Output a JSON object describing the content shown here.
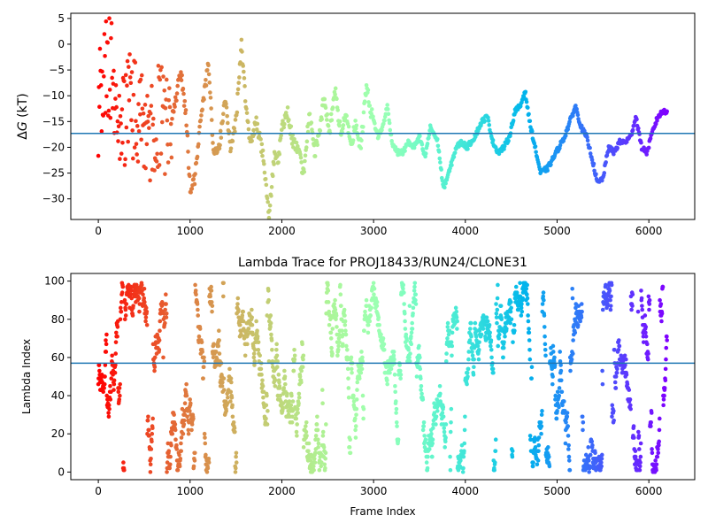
{
  "chart_data": [
    {
      "type": "scatter",
      "title": "",
      "xlabel": "",
      "ylabel": "ΔG (kT)",
      "ylabel_delta": "Δ",
      "ylabel_var": "G",
      "ylabel_unit": " (kT)",
      "xlim": [
        -300,
        6500
      ],
      "ylim": [
        -34,
        6
      ],
      "xticks": [
        0,
        1000,
        2000,
        3000,
        4000,
        5000,
        6000
      ],
      "xtick_labels": [
        "0",
        "1000",
        "2000",
        "3000",
        "4000",
        "5000",
        "6000"
      ],
      "yticks": [
        5,
        0,
        -5,
        -10,
        -15,
        -20,
        -25,
        -30
      ],
      "ytick_labels": [
        "5",
        "0",
        "−5",
        "−10",
        "−15",
        "−20",
        "−25",
        "−30"
      ],
      "hline": -17.3,
      "hline_color": "#1f77b4",
      "colormap": "rainbow (red at frame 0 → violet at frame 6200)",
      "trace_anchors": [
        [
          0,
          -12
        ],
        [
          60,
          -6
        ],
        [
          120,
          -3
        ],
        [
          180,
          -12
        ],
        [
          240,
          -18
        ],
        [
          300,
          -14
        ],
        [
          360,
          -10
        ],
        [
          420,
          -16
        ],
        [
          480,
          -13
        ],
        [
          540,
          -18
        ],
        [
          600,
          -15
        ],
        [
          660,
          -13
        ],
        [
          720,
          -17
        ],
        [
          780,
          -15
        ],
        [
          840,
          -11
        ],
        [
          900,
          -5
        ],
        [
          960,
          -15
        ],
        [
          1000,
          -28
        ],
        [
          1050,
          -26
        ],
        [
          1100,
          -17
        ],
        [
          1150,
          -10
        ],
        [
          1200,
          -4
        ],
        [
          1260,
          -22
        ],
        [
          1320,
          -20
        ],
        [
          1380,
          -10
        ],
        [
          1440,
          -20
        ],
        [
          1500,
          -15
        ],
        [
          1560,
          0
        ],
        [
          1600,
          -10
        ],
        [
          1650,
          -19
        ],
        [
          1720,
          -15
        ],
        [
          1800,
          -22
        ],
        [
          1860,
          -33
        ],
        [
          1920,
          -21
        ],
        [
          1960,
          -23
        ],
        [
          2000,
          -16
        ],
        [
          2060,
          -13
        ],
        [
          2120,
          -19
        ],
        [
          2180,
          -21
        ],
        [
          2240,
          -25
        ],
        [
          2300,
          -13
        ],
        [
          2360,
          -21
        ],
        [
          2420,
          -16
        ],
        [
          2460,
          -10
        ],
        [
          2520,
          -17
        ],
        [
          2580,
          -9
        ],
        [
          2640,
          -17
        ],
        [
          2700,
          -14
        ],
        [
          2760,
          -20
        ],
        [
          2800,
          -15
        ],
        [
          2860,
          -20
        ],
        [
          2920,
          -8
        ],
        [
          2970,
          -13
        ],
        [
          3050,
          -18
        ],
        [
          3100,
          -16
        ],
        [
          3150,
          -12
        ],
        [
          3200,
          -19
        ],
        [
          3260,
          -21
        ],
        [
          3320,
          -21
        ],
        [
          3380,
          -19
        ],
        [
          3440,
          -20
        ],
        [
          3500,
          -18
        ],
        [
          3560,
          -22
        ],
        [
          3620,
          -16
        ],
        [
          3700,
          -19
        ],
        [
          3760,
          -28
        ],
        [
          3820,
          -25
        ],
        [
          3900,
          -20
        ],
        [
          3960,
          -19
        ],
        [
          4020,
          -20
        ],
        [
          4100,
          -18
        ],
        [
          4180,
          -15
        ],
        [
          4240,
          -14
        ],
        [
          4300,
          -19
        ],
        [
          4360,
          -21
        ],
        [
          4420,
          -20
        ],
        [
          4480,
          -18
        ],
        [
          4540,
          -13
        ],
        [
          4600,
          -12
        ],
        [
          4650,
          -9
        ],
        [
          4700,
          -15
        ],
        [
          4760,
          -20
        ],
        [
          4820,
          -25
        ],
        [
          4900,
          -24
        ],
        [
          4960,
          -22
        ],
        [
          5020,
          -20
        ],
        [
          5080,
          -18
        ],
        [
          5140,
          -15
        ],
        [
          5200,
          -12
        ],
        [
          5260,
          -16
        ],
        [
          5320,
          -18
        ],
        [
          5380,
          -22
        ],
        [
          5440,
          -27
        ],
        [
          5500,
          -26
        ],
        [
          5560,
          -20
        ],
        [
          5620,
          -21
        ],
        [
          5680,
          -19
        ],
        [
          5740,
          -19
        ],
        [
          5800,
          -18
        ],
        [
          5860,
          -14
        ],
        [
          5920,
          -20
        ],
        [
          5980,
          -21
        ],
        [
          6040,
          -17
        ],
        [
          6100,
          -14
        ],
        [
          6160,
          -13
        ],
        [
          6200,
          -13
        ]
      ]
    },
    {
      "type": "scatter",
      "title": "Lambda Trace for PROJ18433/RUN24/CLONE31",
      "xlabel": "Frame Index",
      "ylabel": "Lambda Index",
      "xlim": [
        -300,
        6500
      ],
      "ylim": [
        -4,
        104
      ],
      "xticks": [
        0,
        1000,
        2000,
        3000,
        4000,
        5000,
        6000
      ],
      "xtick_labels": [
        "0",
        "1000",
        "2000",
        "3000",
        "4000",
        "5000",
        "6000"
      ],
      "yticks": [
        0,
        20,
        40,
        60,
        80,
        100
      ],
      "ytick_labels": [
        "0",
        "20",
        "40",
        "60",
        "80",
        "100"
      ],
      "hline": 57,
      "hline_color": "#1f77b4",
      "colormap": "rainbow (red at frame 0 → violet at frame 6200)",
      "lambda_range": [
        0,
        99
      ],
      "frame_range": [
        0,
        6200
      ]
    }
  ]
}
